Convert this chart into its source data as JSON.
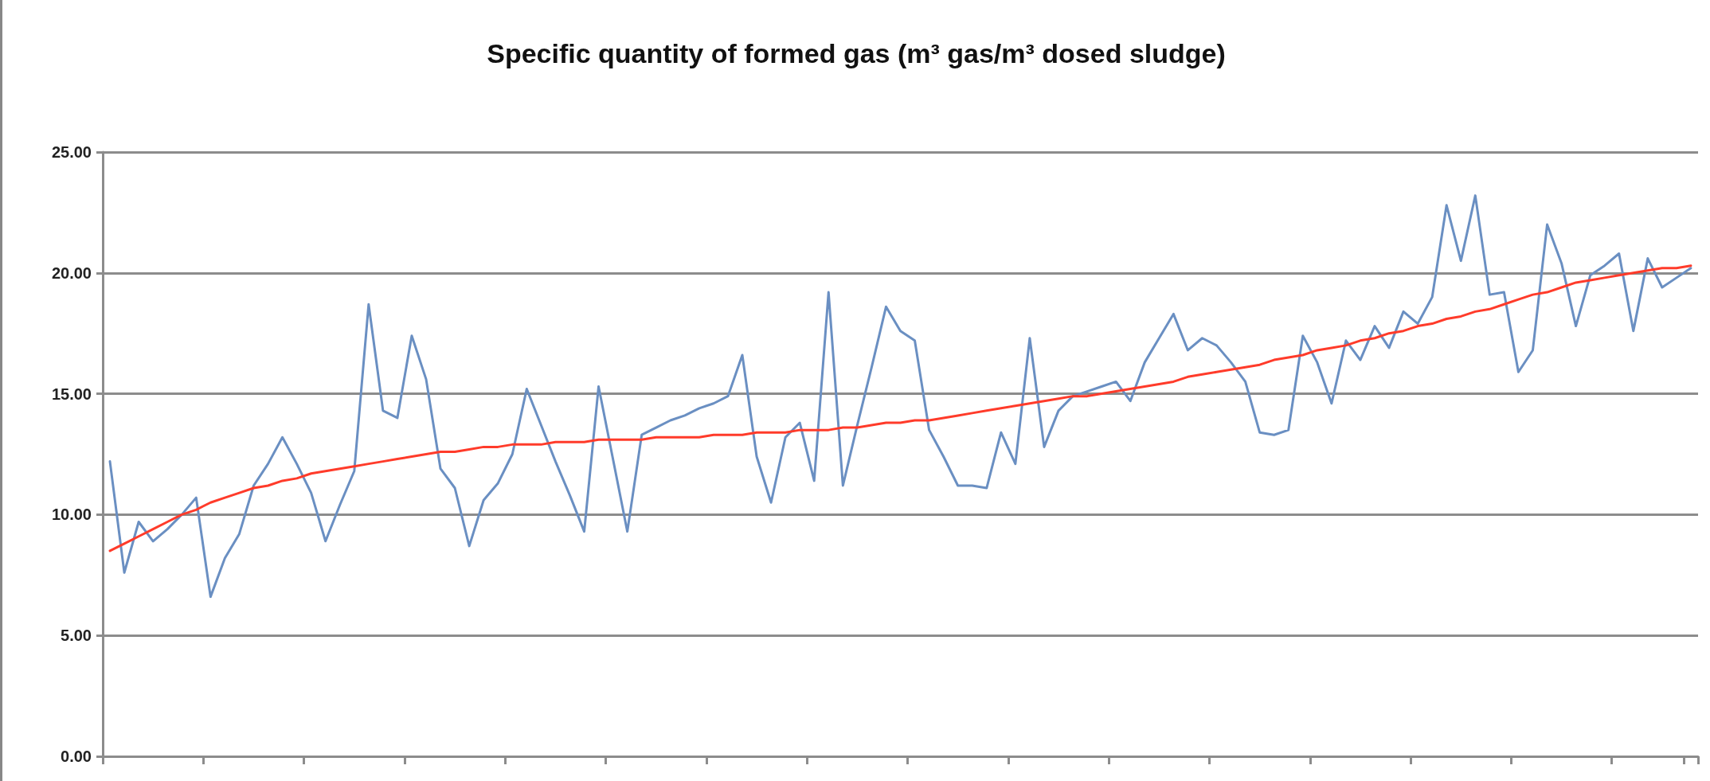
{
  "chart_data": {
    "type": "line",
    "title": "Specific quantity of formed gas (m³ gas/m³ dosed sludge)",
    "categories": [
      null,
      null,
      null,
      null,
      null,
      null,
      null,
      null,
      null,
      null,
      null,
      null,
      null,
      null,
      null,
      null,
      null,
      null,
      null,
      null,
      null,
      null,
      null,
      null,
      null,
      null,
      null,
      null,
      null,
      null,
      null,
      null,
      null,
      null,
      null,
      null,
      null,
      null,
      null,
      null,
      null,
      null,
      null,
      null,
      null,
      null,
      null,
      null,
      null,
      null,
      null,
      null,
      null,
      null,
      null,
      null,
      null,
      null,
      null,
      null,
      null,
      null,
      null,
      null,
      null,
      null,
      null,
      null,
      null,
      null,
      null,
      null,
      null,
      null,
      null,
      null,
      null,
      null,
      null,
      null,
      null,
      null,
      null,
      null,
      null,
      null,
      null,
      null,
      null,
      null,
      null,
      null,
      null,
      null,
      null,
      null,
      null,
      null,
      null,
      null,
      null,
      null,
      null,
      null,
      null,
      null,
      null,
      null,
      null,
      null,
      null
    ],
    "ylim": [
      0,
      25
    ],
    "yticks": [
      {
        "value": 0,
        "label": "0.00"
      },
      {
        "value": 5,
        "label": "5.00"
      },
      {
        "value": 10,
        "label": "10.00"
      },
      {
        "value": 15,
        "label": "15.00"
      },
      {
        "value": 20,
        "label": "20.00"
      },
      {
        "value": 25,
        "label": "25.00"
      }
    ],
    "grid": "y",
    "marker": "none",
    "series": [
      {
        "color": "#6a8fc2",
        "values": [
          12.2,
          7.6,
          9.7,
          8.9,
          9.4,
          10.0,
          10.7,
          6.6,
          8.2,
          9.2,
          11.2,
          12.1,
          13.2,
          12.1,
          10.9,
          8.9,
          10.4,
          11.8,
          18.7,
          14.3,
          14.0,
          17.4,
          15.6,
          11.9,
          11.1,
          8.7,
          10.6,
          11.3,
          12.5,
          15.2,
          13.7,
          12.2,
          10.8,
          9.3,
          15.3,
          12.3,
          9.3,
          13.3,
          13.6,
          13.9,
          14.1,
          14.4,
          14.6,
          14.9,
          16.6,
          12.4,
          10.5,
          13.2,
          13.8,
          11.4,
          19.2,
          11.2,
          13.7,
          16.1,
          18.6,
          17.6,
          17.2,
          13.5,
          12.4,
          11.2,
          11.2,
          11.1,
          13.4,
          12.1,
          17.3,
          12.8,
          14.3,
          14.9,
          15.1,
          15.3,
          15.5,
          14.7,
          16.3,
          17.3,
          18.3,
          16.8,
          17.3,
          17.0,
          16.3,
          15.5,
          13.4,
          13.3,
          13.5,
          17.4,
          16.3,
          14.6,
          17.2,
          16.4,
          17.8,
          16.9,
          18.4,
          17.9,
          19.0,
          22.8,
          20.5,
          23.2,
          19.1,
          19.2,
          15.9,
          16.8,
          22.0,
          20.4,
          17.8,
          19.9,
          20.3,
          20.8,
          17.6,
          20.6,
          19.4,
          19.8,
          20.2
        ]
      },
      {
        "color": "#ff3b2a",
        "values": [
          8.5,
          8.8,
          9.1,
          9.4,
          9.7,
          10.0,
          10.2,
          10.5,
          10.7,
          10.9,
          11.1,
          11.2,
          11.4,
          11.5,
          11.7,
          11.8,
          11.9,
          12.0,
          12.1,
          12.2,
          12.3,
          12.4,
          12.5,
          12.6,
          12.6,
          12.7,
          12.8,
          12.8,
          12.9,
          12.9,
          12.9,
          13.0,
          13.0,
          13.0,
          13.1,
          13.1,
          13.1,
          13.1,
          13.2,
          13.2,
          13.2,
          13.2,
          13.3,
          13.3,
          13.3,
          13.4,
          13.4,
          13.4,
          13.5,
          13.5,
          13.5,
          13.6,
          13.6,
          13.7,
          13.8,
          13.8,
          13.9,
          13.9,
          14.0,
          14.1,
          14.2,
          14.3,
          14.4,
          14.5,
          14.6,
          14.7,
          14.8,
          14.9,
          14.9,
          15.0,
          15.1,
          15.2,
          15.3,
          15.4,
          15.5,
          15.7,
          15.8,
          15.9,
          16.0,
          16.1,
          16.2,
          16.4,
          16.5,
          16.6,
          16.8,
          16.9,
          17.0,
          17.2,
          17.3,
          17.5,
          17.6,
          17.8,
          17.9,
          18.1,
          18.2,
          18.4,
          18.5,
          18.7,
          18.9,
          19.1,
          19.2,
          19.4,
          19.6,
          19.7,
          19.8,
          19.9,
          20.0,
          20.1,
          20.2,
          20.2,
          20.3
        ]
      }
    ]
  }
}
